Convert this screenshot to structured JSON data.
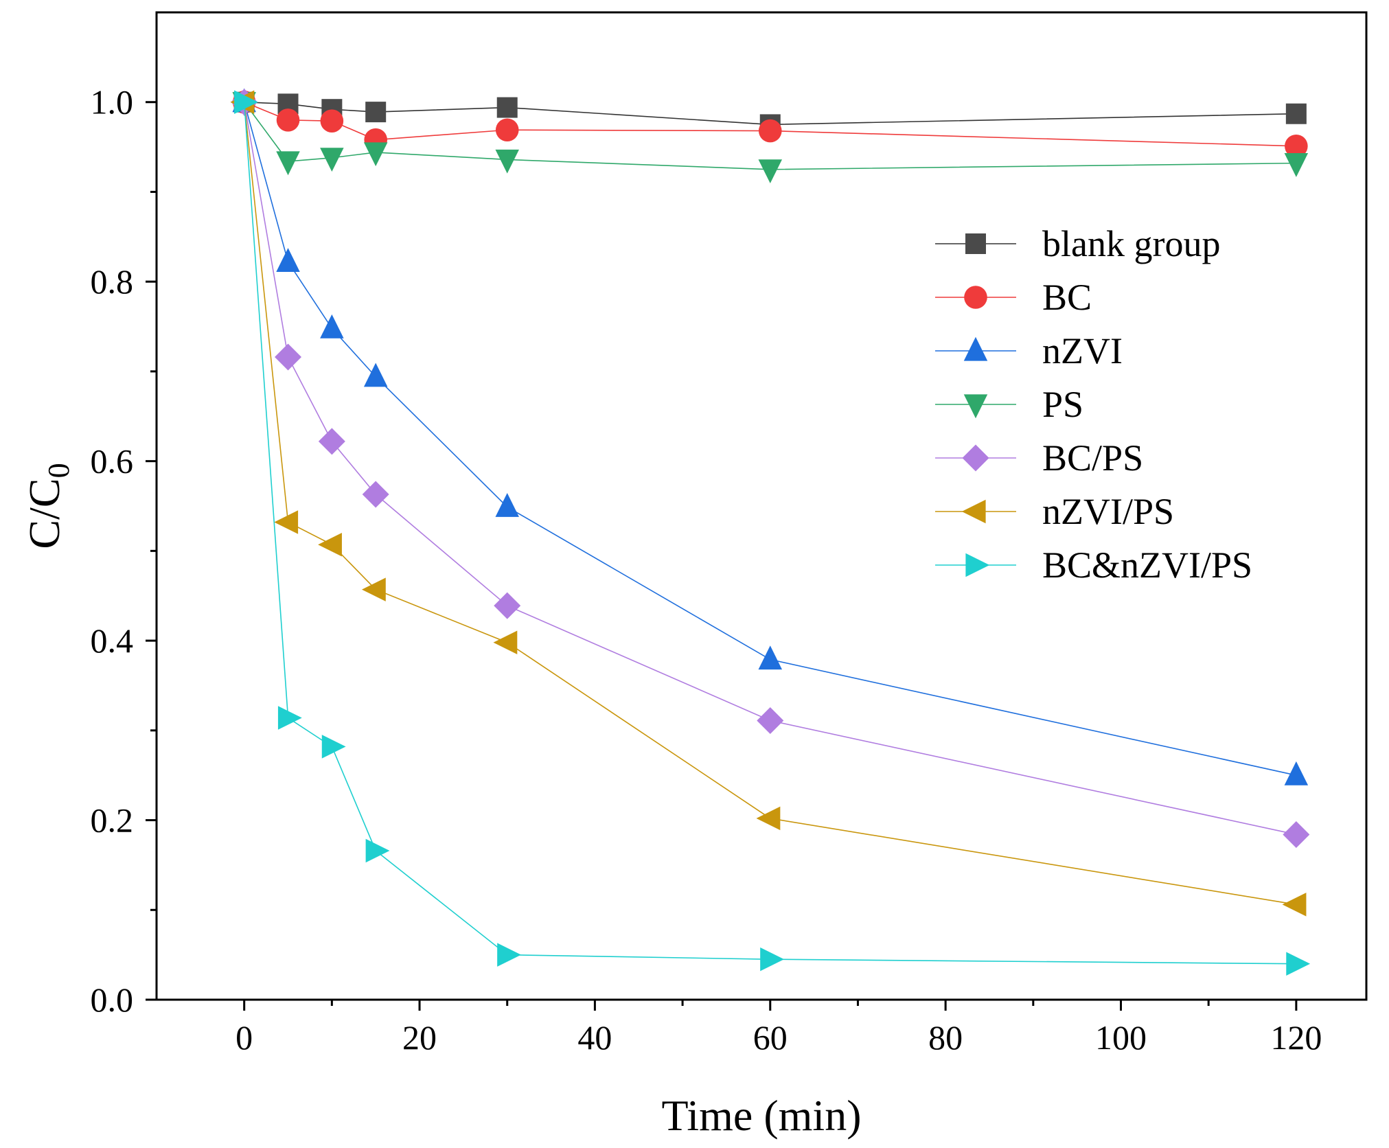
{
  "chart_data": {
    "type": "line",
    "title": "",
    "xlabel": "Time (min)",
    "ylabel_main": "C/C",
    "ylabel_sub": "0",
    "xlim": [
      -10,
      128
    ],
    "ylim": [
      0,
      1.1
    ],
    "x_ticks": [
      0,
      20,
      40,
      60,
      80,
      100,
      120
    ],
    "x_tick_labels": [
      "0",
      "20",
      "40",
      "60",
      "80",
      "100",
      "120"
    ],
    "y_ticks": [
      0.0,
      0.2,
      0.4,
      0.6,
      0.8,
      1.0
    ],
    "y_tick_labels": [
      "0.0",
      "0.2",
      "0.4",
      "0.6",
      "0.8",
      "1.0"
    ],
    "grid": false,
    "legend_position": "right",
    "x": [
      0,
      5,
      10,
      15,
      30,
      60,
      120
    ],
    "series": [
      {
        "name": "blank group",
        "marker": "square",
        "color": "#4a4a4a",
        "line": "#333333",
        "values": [
          1.0,
          0.998,
          0.992,
          0.989,
          0.994,
          0.975,
          0.987
        ]
      },
      {
        "name": "BC",
        "marker": "circle",
        "color": "#ef3b3b",
        "line": "#ef3b3b",
        "values": [
          1.0,
          0.98,
          0.979,
          0.958,
          0.969,
          0.968,
          0.951
        ]
      },
      {
        "name": "nZVI",
        "marker": "triangle-up",
        "color": "#1f6fdd",
        "line": "#1f6fdd",
        "values": [
          1.0,
          0.822,
          0.748,
          0.694,
          0.549,
          0.379,
          0.25
        ]
      },
      {
        "name": "PS",
        "marker": "triangle-down",
        "color": "#2fa86a",
        "line": "#2fa86a",
        "values": [
          1.0,
          0.934,
          0.938,
          0.944,
          0.936,
          0.925,
          0.932
        ]
      },
      {
        "name": "BC/PS",
        "marker": "diamond",
        "color": "#b07de0",
        "line": "#b07de0",
        "values": [
          1.0,
          0.716,
          0.622,
          0.563,
          0.439,
          0.311,
          0.184
        ]
      },
      {
        "name": "nZVI/PS",
        "marker": "triangle-left",
        "color": "#c9960d",
        "line": "#c9960d",
        "values": [
          1.0,
          0.532,
          0.507,
          0.457,
          0.398,
          0.202,
          0.106
        ]
      },
      {
        "name": "BC&nZVI/PS",
        "marker": "triangle-right",
        "color": "#1fcfcf",
        "line": "#1fcfcf",
        "values": [
          1.0,
          0.314,
          0.282,
          0.166,
          0.05,
          0.045,
          0.04
        ]
      }
    ]
  }
}
